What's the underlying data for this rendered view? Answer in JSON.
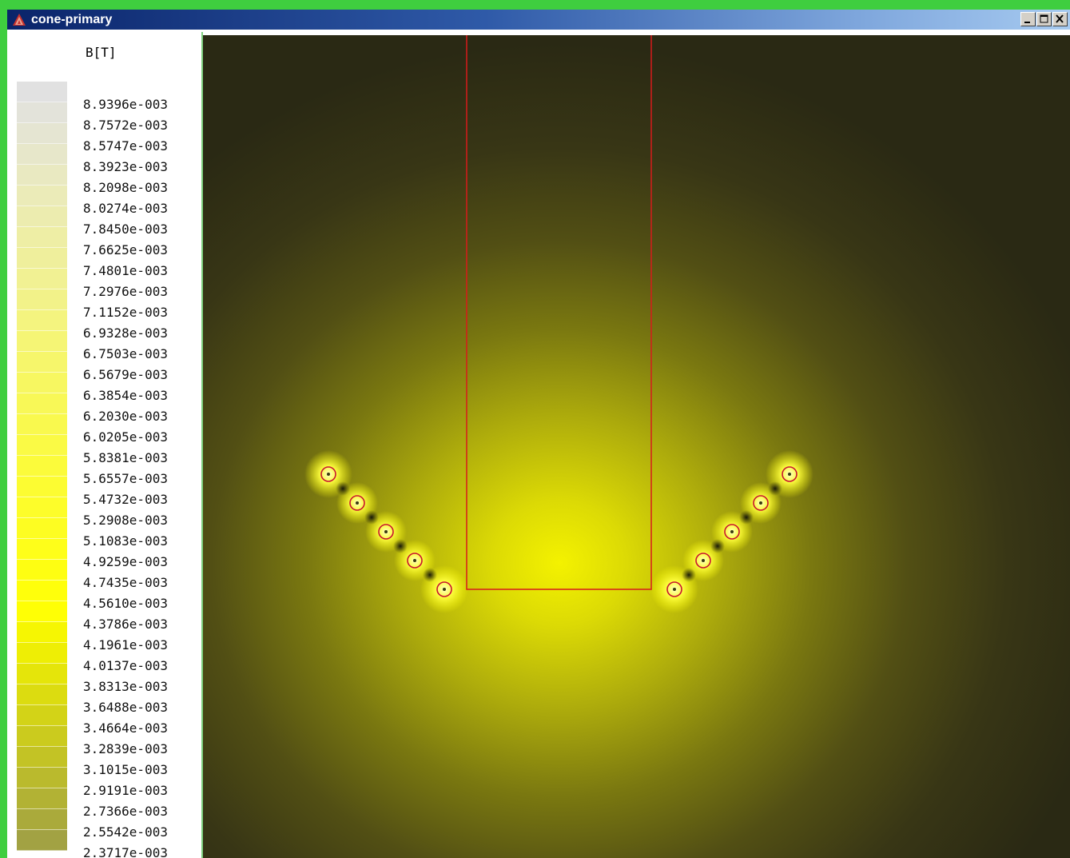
{
  "window": {
    "title": "cone-primary",
    "icons": {
      "app": "triangle-logo-icon",
      "minimize": "minimize-icon",
      "maximize": "maximize-icon",
      "close": "close-icon"
    }
  },
  "legend": {
    "quantity": "B[T]",
    "values": [
      "8.9396e-003",
      "8.7572e-003",
      "8.5747e-003",
      "8.3923e-003",
      "8.2098e-003",
      "8.0274e-003",
      "7.8450e-003",
      "7.6625e-003",
      "7.4801e-003",
      "7.2976e-003",
      "7.1152e-003",
      "6.9328e-003",
      "6.7503e-003",
      "6.5679e-003",
      "6.3854e-003",
      "6.2030e-003",
      "6.0205e-003",
      "5.8381e-003",
      "5.6557e-003",
      "5.4732e-003",
      "5.2908e-003",
      "5.1083e-003",
      "4.9259e-003",
      "4.7435e-003",
      "4.5610e-003",
      "4.3786e-003",
      "4.1961e-003",
      "4.0137e-003",
      "3.8313e-003",
      "3.6488e-003",
      "3.4664e-003",
      "3.2839e-003",
      "3.1015e-003",
      "2.9191e-003",
      "2.7366e-003",
      "2.5542e-003",
      "2.3717e-003"
    ],
    "colors": [
      "#e1e1e1",
      "#e3e3da",
      "#e5e5d2",
      "#e7e7ca",
      "#e9e9c1",
      "#ebebb8",
      "#ececaf",
      "#eeeea5",
      "#efef9c",
      "#f1f193",
      "#f2f289",
      "#f4f47f",
      "#f5f575",
      "#f6f66b",
      "#f7f761",
      "#f8f857",
      "#f9f94e",
      "#fafa45",
      "#fbfb3b",
      "#fcfc32",
      "#fdfd2a",
      "#fdfd22",
      "#fefe1a",
      "#fefe12",
      "#ffff0b",
      "#ffff05",
      "#f6f602",
      "#eeee05",
      "#e5e50a",
      "#dcdc10",
      "#d3d317",
      "#cbcb1e",
      "#c3c325",
      "#baba2d",
      "#b2b234",
      "#aaaa3b",
      "#a2a243"
    ]
  },
  "plot": {
    "background": "#2a2914",
    "outline_color": "#d81b1b"
  }
}
